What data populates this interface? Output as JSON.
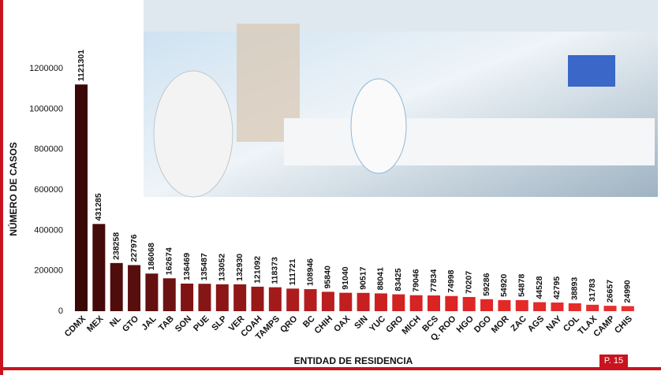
{
  "chart_data": {
    "type": "bar",
    "y_label": "NÚMERO DE CASOS",
    "x_label": "ENTIDAD DE RESIDENCIA",
    "page_label": "P. 15",
    "categories": [
      "CDMX",
      "MEX",
      "NL",
      "GTO",
      "JAL",
      "TAB",
      "SON",
      "PUE",
      "SLP",
      "VER",
      "COAH",
      "TAMPS",
      "QRO",
      "BC",
      "CHIH",
      "OAX",
      "SIN",
      "YUC",
      "GRO",
      "MICH",
      "BCS",
      "Q. ROO",
      "HGO",
      "DGO",
      "MOR",
      "ZAC",
      "AGS",
      "NAY",
      "COL",
      "TLAX",
      "CAMP",
      "CHIS"
    ],
    "values": [
      1121301,
      431285,
      238258,
      227976,
      186068,
      162674,
      136469,
      135487,
      133052,
      132930,
      121092,
      118373,
      111721,
      108946,
      95840,
      91040,
      90517,
      88041,
      83425,
      79046,
      77834,
      74998,
      70207,
      59286,
      54920,
      54878,
      44528,
      42795,
      38893,
      31783,
      26657,
      24990
    ],
    "colors": [
      "#3b0808",
      "#450a0a",
      "#4f0c0c",
      "#590e0e",
      "#631010",
      "#6d1212",
      "#801414",
      "#861515",
      "#8c1616",
      "#921717",
      "#981818",
      "#a31a1a",
      "#ad1c1c",
      "#b41d1d",
      "#ba1e1e",
      "#c01f1f",
      "#c62020",
      "#cc2121",
      "#d22222",
      "#d62323",
      "#da2424",
      "#dd2525",
      "#df2626",
      "#e12727",
      "#e32828",
      "#e42929",
      "#e52a2a",
      "#e62b2b",
      "#e72c2c",
      "#e82d2d",
      "#e92e2e",
      "#ea2f2f"
    ],
    "ylim": [
      0,
      1250000
    ],
    "yticks": [
      0,
      200000,
      400000,
      600000,
      800000,
      1000000,
      1200000
    ],
    "grid": false
  }
}
